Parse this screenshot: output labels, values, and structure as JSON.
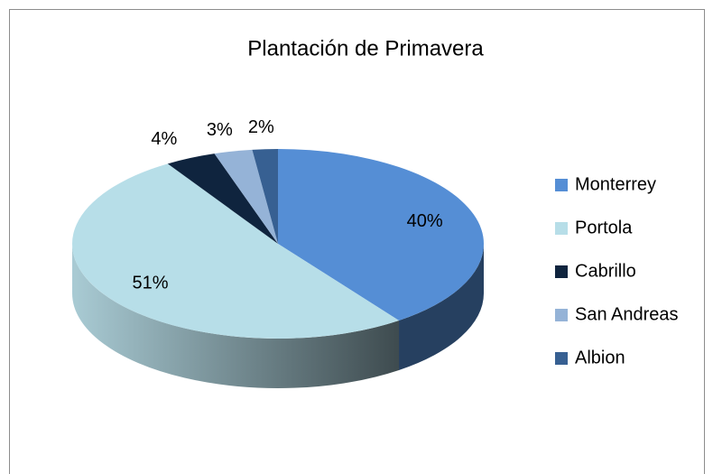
{
  "chart_data": {
    "type": "pie3d",
    "title": "Plantación de Primavera",
    "categories": [
      "Monterrey",
      "Portola",
      "Cabrillo",
      "San Andreas",
      "Albion"
    ],
    "values": [
      40,
      51,
      4,
      3,
      2
    ],
    "value_labels": [
      "40%",
      "51%",
      "4%",
      "3%",
      "2%"
    ],
    "colors": [
      "#558ed5",
      "#b7dee8",
      "#0f243e",
      "#95b3d7",
      "#376092"
    ],
    "legend": "right"
  }
}
